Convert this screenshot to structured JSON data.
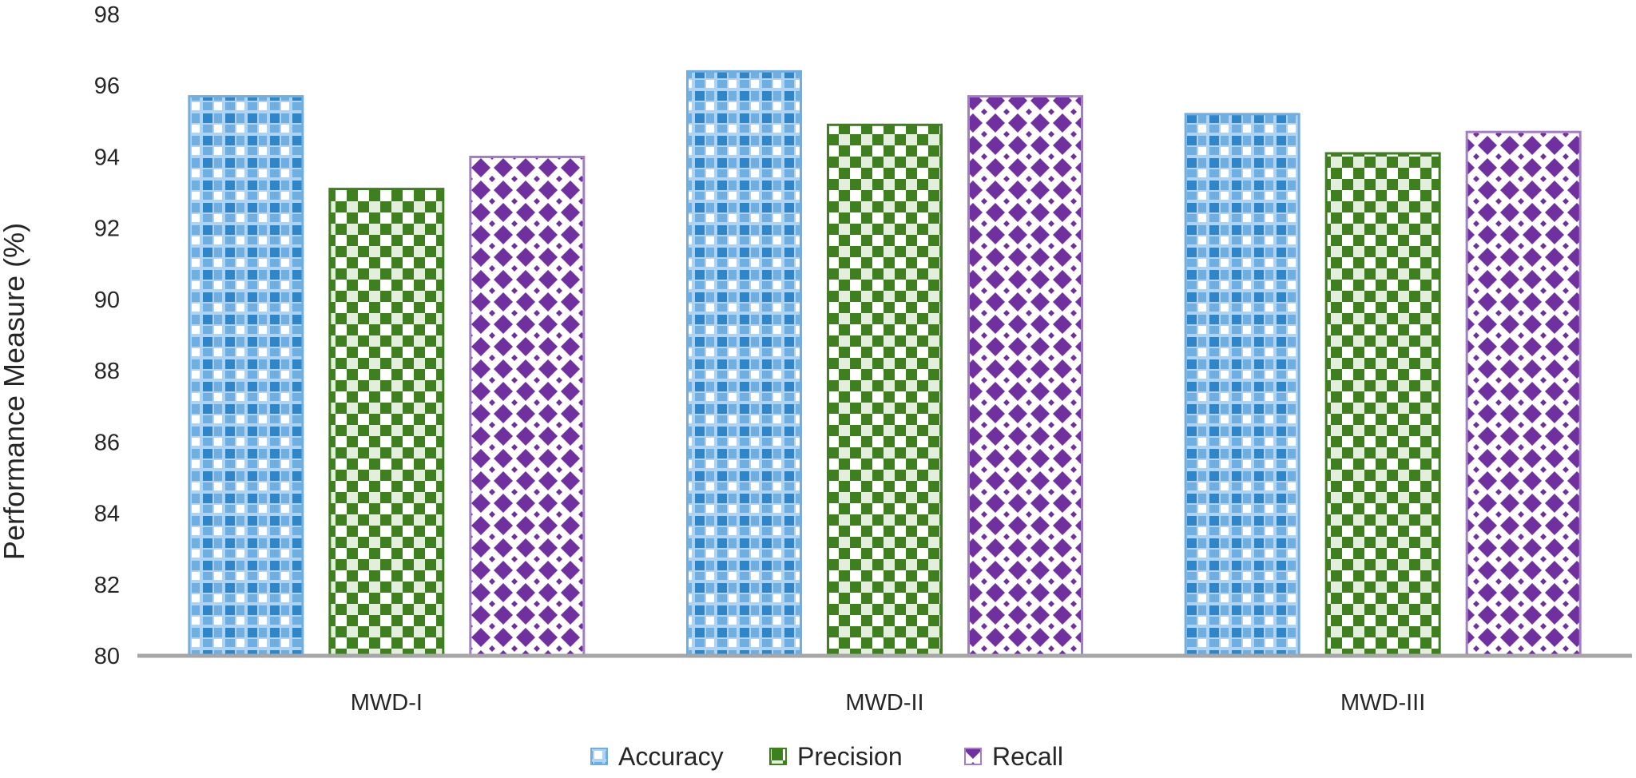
{
  "chart_data": {
    "type": "bar",
    "categories": [
      "MWD-I",
      "MWD-II",
      "MWD-III"
    ],
    "series": [
      {
        "name": "Accuracy",
        "values": [
          95.7,
          96.4,
          95.2
        ],
        "color": "#2E86C8"
      },
      {
        "name": "Precision",
        "values": [
          93.1,
          94.9,
          94.1
        ],
        "color": "#3E7F1E"
      },
      {
        "name": "Recall",
        "values": [
          94.0,
          95.7,
          94.7
        ],
        "color": "#7030A0"
      }
    ],
    "title": "",
    "xlabel": "",
    "ylabel": "Performance Measure (%)",
    "ylim": [
      80,
      98
    ],
    "yticks": [
      80,
      82,
      84,
      86,
      88,
      90,
      92,
      94,
      96,
      98
    ],
    "grid": false,
    "legend_position": "bottom-center"
  }
}
